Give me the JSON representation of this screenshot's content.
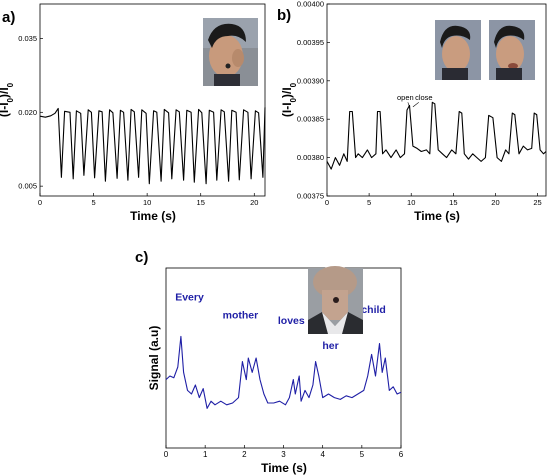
{
  "chart_data": [
    {
      "id": "a",
      "panel_label": "a)",
      "type": "line",
      "xlabel": "Time (s)",
      "ylabel_main": "(I-I",
      "ylabel_sub": "0",
      "ylabel_tail": ")/I",
      "ylabel_sub2": "0",
      "xlim": [
        0,
        21
      ],
      "ylim": [
        0.003,
        0.042
      ],
      "xticks": [
        0,
        5,
        10,
        15,
        20
      ],
      "xtick_labels": [
        "0",
        "5",
        "10",
        "15",
        "20"
      ],
      "yticks": [
        0.005,
        0.02,
        0.035
      ],
      "ytick_labels": [
        "0.005",
        "0.020",
        "0.035"
      ],
      "line_color": "#000000",
      "inset": "photo of a boy's face in profile, with a sensor on his cheek",
      "series": [
        {
          "x": [
            0,
            0.5,
            1.0,
            1.4,
            1.7,
            2.0,
            2.3,
            2.8,
            3.1,
            3.4,
            3.8,
            4.1,
            4.5,
            4.8,
            5.1,
            5.5,
            5.8,
            6.1,
            6.5,
            6.8,
            7.2,
            7.5,
            7.8,
            8.2,
            8.5,
            8.8,
            9.2,
            9.5,
            9.9,
            10.2,
            10.6,
            10.9,
            11.3,
            11.6,
            12.0,
            12.3,
            12.7,
            13.0,
            13.4,
            13.7,
            14.1,
            14.4,
            14.8,
            15.1,
            15.5,
            15.8,
            16.2,
            16.5,
            16.9,
            17.2,
            17.6,
            17.9,
            18.3,
            18.6,
            19.0,
            19.4,
            19.7,
            20.1,
            20.4,
            20.8,
            21
          ],
          "y": [
            0.0192,
            0.019,
            0.0193,
            0.0198,
            0.0208,
            0.0068,
            0.0202,
            0.02,
            0.0065,
            0.0203,
            0.0198,
            0.0072,
            0.0205,
            0.02,
            0.0067,
            0.0203,
            0.0201,
            0.006,
            0.0205,
            0.0199,
            0.0066,
            0.0204,
            0.02,
            0.0062,
            0.0206,
            0.0201,
            0.0068,
            0.0205,
            0.0198,
            0.0055,
            0.0203,
            0.02,
            0.006,
            0.0206,
            0.0199,
            0.0065,
            0.0205,
            0.0201,
            0.0062,
            0.0204,
            0.02,
            0.0058,
            0.0206,
            0.0199,
            0.0055,
            0.0204,
            0.02,
            0.0062,
            0.0205,
            0.0201,
            0.006,
            0.0204,
            0.02,
            0.0063,
            0.0205,
            0.02,
            0.0065,
            0.0203,
            0.0199,
            0.0068,
            0.021
          ]
        }
      ]
    },
    {
      "id": "b",
      "panel_label": "b)",
      "type": "line",
      "xlabel": "Time (s)",
      "ylabel_main": "(I-I",
      "ylabel_sub": "0",
      "ylabel_tail": ")/I",
      "ylabel_sub2": "0",
      "xlim": [
        0,
        26
      ],
      "ylim": [
        0.00375,
        0.004
      ],
      "xticks": [
        0,
        5,
        10,
        15,
        20,
        25
      ],
      "xtick_labels": [
        "0",
        "5",
        "10",
        "15",
        "20",
        "25"
      ],
      "yticks": [
        0.00375,
        0.0038,
        0.00385,
        0.0039,
        0.00395,
        0.004
      ],
      "ytick_labels": [
        "0.00375",
        "0.00380",
        "0.00385",
        "0.00390",
        "0.00395",
        "0.00400"
      ],
      "line_color": "#000000",
      "annotations": [
        {
          "text": "open",
          "x": 9.3,
          "y": 0.003875
        },
        {
          "text": "close",
          "x": 11.5,
          "y": 0.003875
        }
      ],
      "inset": "two photos of a boy's face in profile",
      "series": [
        {
          "x": [
            0,
            0.5,
            1.0,
            1.5,
            2.0,
            2.4,
            2.7,
            3.0,
            3.4,
            3.7,
            4.2,
            4.8,
            5.3,
            5.8,
            6.0,
            6.3,
            6.6,
            7.0,
            7.6,
            8.2,
            8.7,
            9.2,
            9.5,
            9.8,
            10.2,
            10.7,
            11.2,
            11.8,
            12.2,
            12.5,
            12.8,
            13.2,
            13.7,
            14.2,
            14.8,
            15.3,
            15.7,
            16.0,
            16.3,
            16.8,
            17.3,
            17.8,
            18.3,
            18.8,
            19.2,
            19.7,
            20.2,
            20.7,
            21.2,
            21.6,
            22.0,
            22.3,
            22.8,
            23.3,
            23.8,
            24.3,
            24.6,
            24.9,
            25.3,
            25.7,
            26
          ],
          "y": [
            0.003795,
            0.003785,
            0.0038,
            0.00379,
            0.003805,
            0.003795,
            0.00386,
            0.00386,
            0.0038,
            0.003805,
            0.0038,
            0.00381,
            0.0038,
            0.003805,
            0.00386,
            0.00386,
            0.003805,
            0.00381,
            0.0038,
            0.00381,
            0.0038,
            0.003805,
            0.003862,
            0.003868,
            0.003815,
            0.003812,
            0.003808,
            0.00381,
            0.003805,
            0.003872,
            0.00387,
            0.00381,
            0.003805,
            0.0038,
            0.00381,
            0.003805,
            0.00386,
            0.003858,
            0.003805,
            0.003798,
            0.003805,
            0.0038,
            0.003795,
            0.0038,
            0.003855,
            0.003852,
            0.0038,
            0.003795,
            0.00381,
            0.003805,
            0.003858,
            0.003856,
            0.003805,
            0.003815,
            0.00381,
            0.003812,
            0.003858,
            0.003856,
            0.00381,
            0.003805,
            0.003808
          ]
        }
      ]
    },
    {
      "id": "c",
      "panel_label": "c)",
      "type": "line",
      "xlabel": "Time (s)",
      "ylabel": "Signal (a.u)",
      "xlim": [
        0,
        6
      ],
      "ylim": [
        0,
        1
      ],
      "xticks": [
        0,
        1,
        2,
        3,
        4,
        5,
        6
      ],
      "xtick_labels": [
        "0",
        "1",
        "2",
        "3",
        "4",
        "5",
        "6"
      ],
      "yticks": [],
      "line_color": "#1f1fa6",
      "word_color": "#1f1fa6",
      "annotations": [
        {
          "text": "Every",
          "x": 0.6,
          "y": 0.82
        },
        {
          "text": "mother",
          "x": 1.9,
          "y": 0.72
        },
        {
          "text": "loves",
          "x": 3.2,
          "y": 0.69
        },
        {
          "text": "her",
          "x": 4.2,
          "y": 0.55
        },
        {
          "text": "child",
          "x": 5.3,
          "y": 0.75
        }
      ],
      "inset": "photo of a person's neck with a sensor attached",
      "series": [
        {
          "x": [
            0,
            0.1,
            0.2,
            0.3,
            0.38,
            0.45,
            0.55,
            0.65,
            0.75,
            0.85,
            0.95,
            1.05,
            1.15,
            1.25,
            1.4,
            1.55,
            1.7,
            1.85,
            1.95,
            2.05,
            2.1,
            2.2,
            2.3,
            2.4,
            2.5,
            2.6,
            2.75,
            2.9,
            3.05,
            3.15,
            3.25,
            3.3,
            3.4,
            3.45,
            3.55,
            3.65,
            3.75,
            3.82,
            3.9,
            4.0,
            4.15,
            4.3,
            4.45,
            4.6,
            4.75,
            4.9,
            5.05,
            5.15,
            5.25,
            5.35,
            5.45,
            5.52,
            5.6,
            5.7,
            5.8,
            5.9,
            6.0
          ],
          "y": [
            0.38,
            0.4,
            0.39,
            0.45,
            0.62,
            0.42,
            0.32,
            0.3,
            0.35,
            0.28,
            0.33,
            0.22,
            0.26,
            0.24,
            0.26,
            0.24,
            0.25,
            0.28,
            0.48,
            0.38,
            0.5,
            0.42,
            0.5,
            0.38,
            0.3,
            0.25,
            0.25,
            0.26,
            0.24,
            0.28,
            0.38,
            0.3,
            0.4,
            0.26,
            0.32,
            0.28,
            0.35,
            0.48,
            0.4,
            0.28,
            0.3,
            0.28,
            0.27,
            0.29,
            0.28,
            0.3,
            0.32,
            0.4,
            0.52,
            0.4,
            0.58,
            0.42,
            0.5,
            0.32,
            0.34,
            0.3,
            0.31
          ]
        }
      ]
    }
  ]
}
